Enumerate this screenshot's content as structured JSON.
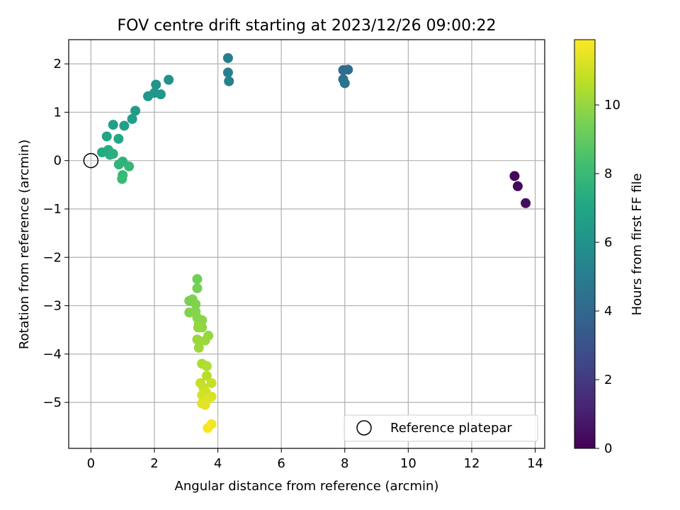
{
  "chart_data": {
    "type": "scatter",
    "title": "FOV centre drift starting at 2023/12/26 09:00:22",
    "xlabel": "Angular distance from reference (arcmin)",
    "ylabel": "Rotation from reference (arcmin)",
    "xlim": [
      -0.7,
      14.3
    ],
    "ylim": [
      -5.95,
      2.5
    ],
    "xticks": [
      0,
      2,
      4,
      6,
      8,
      10,
      12,
      14
    ],
    "yticks": [
      2,
      1,
      0,
      -1,
      -2,
      -3,
      -4,
      -5
    ],
    "ytick_labels": [
      "2",
      "1",
      "0",
      "−1",
      "−2",
      "−3",
      "−4",
      "−5"
    ],
    "grid": true,
    "colormap": "viridis",
    "colorbar": {
      "label": "Hours from first FF file",
      "range": [
        0,
        11.9
      ],
      "ticks": [
        0,
        2,
        4,
        6,
        8,
        10
      ],
      "tick_labels": [
        "0",
        "2",
        "4",
        "6",
        "8",
        "10"
      ]
    },
    "legend": {
      "position": "lower-right",
      "entries": [
        "Reference platepar"
      ]
    },
    "reference_point": {
      "x": 0,
      "y": 0
    },
    "points": [
      {
        "x": 13.35,
        "y": -0.32,
        "c": 0.2
      },
      {
        "x": 13.45,
        "y": -0.53,
        "c": 0.3
      },
      {
        "x": 13.7,
        "y": -0.88,
        "c": 0.4
      },
      {
        "x": 7.95,
        "y": 1.87,
        "c": 4.2
      },
      {
        "x": 8.1,
        "y": 1.88,
        "c": 4.3
      },
      {
        "x": 7.95,
        "y": 1.68,
        "c": 4.4
      },
      {
        "x": 8.0,
        "y": 1.6,
        "c": 4.5
      },
      {
        "x": 4.32,
        "y": 2.12,
        "c": 5.0
      },
      {
        "x": 4.32,
        "y": 1.82,
        "c": 5.1
      },
      {
        "x": 4.35,
        "y": 1.64,
        "c": 5.2
      },
      {
        "x": 2.45,
        "y": 1.67,
        "c": 6.0
      },
      {
        "x": 2.05,
        "y": 1.57,
        "c": 6.1
      },
      {
        "x": 2.0,
        "y": 1.4,
        "c": 6.2
      },
      {
        "x": 2.2,
        "y": 1.37,
        "c": 6.25
      },
      {
        "x": 1.8,
        "y": 1.33,
        "c": 6.3
      },
      {
        "x": 1.4,
        "y": 1.03,
        "c": 6.5
      },
      {
        "x": 1.3,
        "y": 0.86,
        "c": 6.6
      },
      {
        "x": 0.7,
        "y": 0.74,
        "c": 6.7
      },
      {
        "x": 1.05,
        "y": 0.72,
        "c": 6.8
      },
      {
        "x": 0.5,
        "y": 0.5,
        "c": 7.0
      },
      {
        "x": 0.87,
        "y": 0.45,
        "c": 7.1
      },
      {
        "x": 0.35,
        "y": 0.17,
        "c": 7.2
      },
      {
        "x": 0.55,
        "y": 0.22,
        "c": 7.3
      },
      {
        "x": 0.6,
        "y": 0.12,
        "c": 7.4
      },
      {
        "x": 0.7,
        "y": 0.14,
        "c": 7.45
      },
      {
        "x": 1.0,
        "y": -0.02,
        "c": 7.6
      },
      {
        "x": 0.88,
        "y": -0.08,
        "c": 7.7
      },
      {
        "x": 1.2,
        "y": -0.12,
        "c": 7.8
      },
      {
        "x": 1.0,
        "y": -0.3,
        "c": 7.9
      },
      {
        "x": 0.98,
        "y": -0.38,
        "c": 8.0
      },
      {
        "x": 3.35,
        "y": -2.45,
        "c": 9.3
      },
      {
        "x": 3.35,
        "y": -2.64,
        "c": 9.4
      },
      {
        "x": 3.1,
        "y": -2.9,
        "c": 9.5
      },
      {
        "x": 3.2,
        "y": -2.87,
        "c": 9.55
      },
      {
        "x": 3.3,
        "y": -2.97,
        "c": 9.6
      },
      {
        "x": 3.1,
        "y": -3.14,
        "c": 9.65
      },
      {
        "x": 3.3,
        "y": -3.12,
        "c": 9.7
      },
      {
        "x": 3.35,
        "y": -3.25,
        "c": 9.75
      },
      {
        "x": 3.5,
        "y": -3.3,
        "c": 9.8
      },
      {
        "x": 3.4,
        "y": -3.38,
        "c": 9.85
      },
      {
        "x": 3.5,
        "y": -3.45,
        "c": 9.9
      },
      {
        "x": 3.38,
        "y": -3.45,
        "c": 9.95
      },
      {
        "x": 3.7,
        "y": -3.62,
        "c": 10.0
      },
      {
        "x": 3.35,
        "y": -3.7,
        "c": 10.05
      },
      {
        "x": 3.6,
        "y": -3.72,
        "c": 10.1
      },
      {
        "x": 3.4,
        "y": -3.87,
        "c": 10.15
      },
      {
        "x": 3.5,
        "y": -4.2,
        "c": 10.4
      },
      {
        "x": 3.65,
        "y": -4.25,
        "c": 10.5
      },
      {
        "x": 3.65,
        "y": -4.45,
        "c": 10.6
      },
      {
        "x": 3.45,
        "y": -4.6,
        "c": 10.8
      },
      {
        "x": 3.8,
        "y": -4.6,
        "c": 10.85
      },
      {
        "x": 3.55,
        "y": -4.7,
        "c": 10.9
      },
      {
        "x": 3.62,
        "y": -4.78,
        "c": 11.0
      },
      {
        "x": 3.5,
        "y": -4.85,
        "c": 11.1
      },
      {
        "x": 3.8,
        "y": -4.88,
        "c": 11.2
      },
      {
        "x": 3.65,
        "y": -4.95,
        "c": 11.3
      },
      {
        "x": 3.5,
        "y": -5.02,
        "c": 11.35
      },
      {
        "x": 3.6,
        "y": -5.05,
        "c": 11.4
      },
      {
        "x": 3.8,
        "y": -5.45,
        "c": 11.7
      },
      {
        "x": 3.68,
        "y": -5.53,
        "c": 11.8
      }
    ]
  }
}
